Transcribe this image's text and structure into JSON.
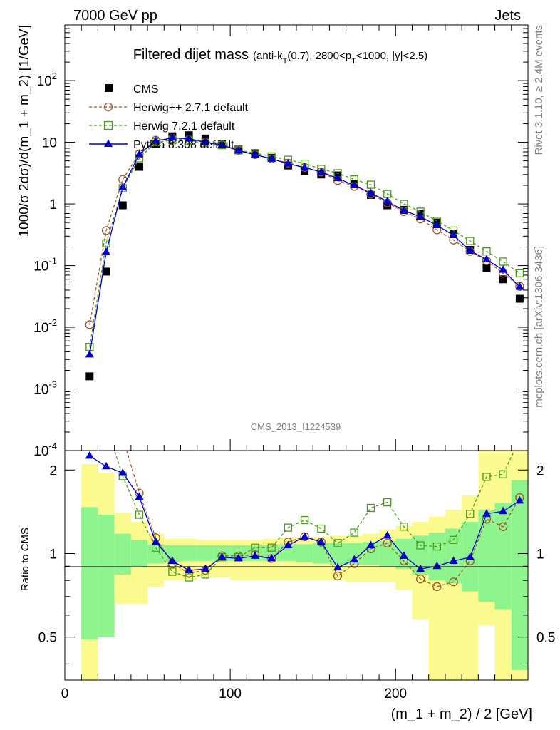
{
  "header": {
    "left": "7000 GeV pp",
    "right": "Jets"
  },
  "chart_data": {
    "type": "line",
    "title": "Filtered dijet mass",
    "title_detail": "(anti-k_T(0.7), 2800<p_T<1000, |y|<2.5)",
    "xlabel": "(m_1 + m_2) / 2 [GeV]",
    "ylabel": "1000/σ 2dσ)/d(m_1 + m_2) [1/GeV]",
    "ratio_ylabel": "Ratio to CMS",
    "xlim": [
      0,
      280
    ],
    "ylim": [
      0.0001,
      800
    ],
    "yscale": "log",
    "ratio_ylim": [
      0.35,
      2.35
    ],
    "ratio_yscale": "log",
    "x_ticks": [
      0,
      100,
      200
    ],
    "y_ticks": [
      "10^-4",
      "10^-3",
      "10^-2",
      "10^-1",
      "1",
      "10",
      "10^2"
    ],
    "ratio_ticks": [
      "0.5",
      "1",
      "2"
    ],
    "watermark": "CMS_2013_I1224539",
    "side_top": "Rivet 3.1.10, ≥ 2.4M events",
    "side_bottom": "mcplots.cern.ch [arXiv:1306.3436]",
    "legend_position": "top-left",
    "x": [
      15,
      25,
      35,
      45,
      55,
      65,
      75,
      85,
      95,
      105,
      115,
      125,
      135,
      145,
      155,
      165,
      175,
      185,
      195,
      205,
      215,
      225,
      235,
      245,
      255,
      265,
      275
    ],
    "bin_edges": [
      10,
      20,
      30,
      40,
      50,
      60,
      70,
      80,
      90,
      100,
      110,
      120,
      130,
      140,
      150,
      160,
      170,
      180,
      190,
      200,
      210,
      220,
      230,
      240,
      250,
      260,
      270,
      280
    ],
    "series": [
      {
        "name": "CMS",
        "color": "#000000",
        "marker": "square-filled",
        "values": [
          0.0016,
          0.08,
          0.95,
          4.0,
          9.5,
          12.5,
          13.0,
          11.5,
          9.3,
          7.6,
          6.4,
          5.6,
          4.2,
          3.4,
          3.0,
          2.9,
          2.1,
          1.4,
          0.95,
          0.8,
          0.7,
          0.5,
          0.33,
          0.18,
          0.09,
          0.06,
          0.029
        ]
      },
      {
        "name": "Herwig++ 2.7.1 default",
        "color": "#a0522d",
        "marker": "circle-open",
        "dashed": true,
        "values": [
          0.011,
          0.37,
          2.5,
          6.5,
          10.8,
          11.5,
          11.0,
          10.0,
          9.1,
          7.4,
          6.3,
          5.4,
          4.6,
          3.9,
          3.3,
          2.4,
          1.93,
          1.45,
          1.04,
          0.75,
          0.57,
          0.38,
          0.26,
          0.17,
          0.12,
          0.075,
          0.046
        ]
      },
      {
        "name": "Herwig 7.2.1 default",
        "color": "#4a9a1a",
        "marker": "square-open",
        "dashed": true,
        "values": [
          0.0048,
          0.23,
          1.8,
          5.5,
          10.0,
          10.8,
          10.6,
          9.7,
          9.0,
          7.4,
          6.7,
          5.9,
          5.2,
          4.5,
          3.7,
          3.15,
          2.5,
          2.05,
          1.45,
          1.0,
          0.75,
          0.53,
          0.37,
          0.25,
          0.17,
          0.116,
          0.075
        ]
      },
      {
        "name": "Pythia 8.308 default",
        "color": "#0000cc",
        "marker": "triangle-filled",
        "dashed": false,
        "values": [
          0.0036,
          0.165,
          1.85,
          6.4,
          10.5,
          11.8,
          11.4,
          10.1,
          9.0,
          7.3,
          6.3,
          5.4,
          4.5,
          3.9,
          3.3,
          2.6,
          2.0,
          1.5,
          1.1,
          0.78,
          0.62,
          0.45,
          0.31,
          0.175,
          0.125,
          0.085,
          0.045
        ]
      }
    ],
    "ratio_series": [
      {
        "name": "Herwig++ 2.7.1 default",
        "values": [
          6.9,
          4.6,
          2.63,
          1.65,
          1.14,
          0.92,
          0.85,
          0.87,
          0.98,
          0.98,
          0.99,
          0.96,
          1.1,
          1.15,
          1.1,
          0.83,
          0.92,
          1.04,
          1.09,
          0.94,
          0.81,
          0.76,
          0.79,
          0.94,
          1.33,
          1.25,
          1.59
        ]
      },
      {
        "name": "Herwig 7.2.1 default",
        "values": [
          3.0,
          2.9,
          1.9,
          1.38,
          1.05,
          0.86,
          0.82,
          0.84,
          0.97,
          0.97,
          1.05,
          1.05,
          1.24,
          1.32,
          1.23,
          1.09,
          1.19,
          1.46,
          1.53,
          1.25,
          1.07,
          1.06,
          1.12,
          1.39,
          1.89,
          1.93,
          2.59
        ]
      },
      {
        "name": "Pythia 8.308 default",
        "values": [
          2.25,
          2.06,
          1.95,
          1.6,
          1.1,
          0.94,
          0.87,
          0.88,
          0.97,
          0.96,
          0.98,
          0.96,
          1.07,
          1.15,
          1.1,
          0.89,
          0.95,
          1.07,
          1.16,
          0.98,
          0.88,
          0.9,
          0.94,
          0.97,
          1.39,
          1.42,
          1.55
        ]
      }
    ],
    "bands": {
      "stat_color": "#8ef58e",
      "total_color": "#fafa8e",
      "stat_lo": [
        0.49,
        0.5,
        0.84,
        0.89,
        0.92,
        0.93,
        0.94,
        0.94,
        0.94,
        0.94,
        0.94,
        0.94,
        0.94,
        0.93,
        0.92,
        0.91,
        0.91,
        0.91,
        0.9,
        0.88,
        0.84,
        0.8,
        0.78,
        0.73,
        0.67,
        0.63,
        0.38
      ],
      "stat_hi": [
        1.47,
        1.38,
        1.18,
        1.12,
        1.08,
        1.07,
        1.07,
        1.07,
        1.07,
        1.07,
        1.07,
        1.07,
        1.08,
        1.08,
        1.09,
        1.09,
        1.09,
        1.1,
        1.11,
        1.13,
        1.16,
        1.19,
        1.23,
        1.3,
        1.44,
        1.52,
        1.84
      ],
      "tot_lo": [
        0.35,
        0.5,
        0.66,
        0.66,
        0.76,
        0.8,
        0.8,
        0.82,
        0.82,
        0.8,
        0.8,
        0.8,
        0.8,
        0.8,
        0.8,
        0.8,
        0.79,
        0.79,
        0.79,
        0.74,
        0.58,
        0.35,
        0.35,
        0.35,
        0.55,
        0.35,
        0.35
      ],
      "tot_hi": [
        2.1,
        1.95,
        1.4,
        1.3,
        1.18,
        1.13,
        1.13,
        1.12,
        1.12,
        1.12,
        1.12,
        1.13,
        1.14,
        1.14,
        1.15,
        1.16,
        1.16,
        1.18,
        1.22,
        1.26,
        1.3,
        1.36,
        1.44,
        1.62,
        2.35,
        2.35,
        2.35
      ]
    }
  }
}
